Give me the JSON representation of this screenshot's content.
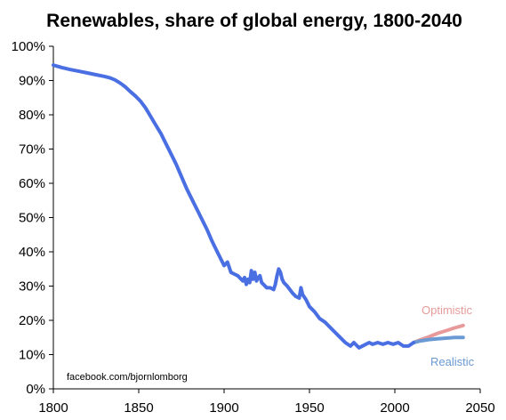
{
  "chart_data": {
    "type": "line",
    "title": "Renewables, share of global energy, 1800-2040",
    "xlabel": "",
    "ylabel": "",
    "xlim": [
      1800,
      2050
    ],
    "ylim": [
      0,
      100
    ],
    "x_ticks": [
      "1800",
      "1850",
      "1900",
      "1950",
      "2000",
      "2050"
    ],
    "y_ticks": [
      "0%",
      "10%",
      "20%",
      "30%",
      "40%",
      "50%",
      "60%",
      "70%",
      "80%",
      "90%",
      "100%"
    ],
    "grid": false,
    "source": "facebook.com/bjornlomborg",
    "colors": {
      "historical": "#4a6fe3",
      "optimistic": "#e89a9a",
      "realistic": "#6a9ad4"
    },
    "series": [
      {
        "name": "",
        "points": [
          [
            1800,
            94.5
          ],
          [
            1805,
            93.8
          ],
          [
            1810,
            93.2
          ],
          [
            1815,
            92.7
          ],
          [
            1820,
            92.2
          ],
          [
            1825,
            91.7
          ],
          [
            1830,
            91.2
          ],
          [
            1833,
            90.8
          ],
          [
            1836,
            90.2
          ],
          [
            1839,
            89.3
          ],
          [
            1842,
            88.2
          ],
          [
            1845,
            86.8
          ],
          [
            1848,
            85.5
          ],
          [
            1851,
            84.0
          ],
          [
            1854,
            82.0
          ],
          [
            1857,
            79.5
          ],
          [
            1860,
            77.0
          ],
          [
            1863,
            74.5
          ],
          [
            1866,
            71.5
          ],
          [
            1869,
            68.5
          ],
          [
            1872,
            65.5
          ],
          [
            1875,
            62.0
          ],
          [
            1878,
            58.5
          ],
          [
            1881,
            55.5
          ],
          [
            1884,
            52.5
          ],
          [
            1887,
            49.5
          ],
          [
            1890,
            46.5
          ],
          [
            1893,
            43.0
          ],
          [
            1896,
            40.0
          ],
          [
            1899,
            37.0
          ],
          [
            1900,
            36.0
          ],
          [
            1902,
            37.0
          ],
          [
            1904,
            34.0
          ],
          [
            1906,
            33.5
          ],
          [
            1908,
            33.0
          ],
          [
            1910,
            32.0
          ],
          [
            1911,
            31.5
          ],
          [
            1912,
            32.5
          ],
          [
            1913,
            30.5
          ],
          [
            1914,
            32.0
          ],
          [
            1915,
            31.0
          ],
          [
            1916,
            34.5
          ],
          [
            1917,
            32.0
          ],
          [
            1918,
            34.0
          ],
          [
            1919,
            31.5
          ],
          [
            1920,
            32.5
          ],
          [
            1921,
            33.0
          ],
          [
            1922,
            31.0
          ],
          [
            1923,
            30.5
          ],
          [
            1925,
            29.5
          ],
          [
            1927,
            29.5
          ],
          [
            1929,
            29.0
          ],
          [
            1930,
            30.5
          ],
          [
            1931,
            33.0
          ],
          [
            1932,
            35.0
          ],
          [
            1933,
            34.0
          ],
          [
            1934,
            32.0
          ],
          [
            1935,
            31.0
          ],
          [
            1937,
            30.0
          ],
          [
            1940,
            28.0
          ],
          [
            1942,
            27.0
          ],
          [
            1944,
            26.5
          ],
          [
            1945,
            29.5
          ],
          [
            1946,
            27.5
          ],
          [
            1948,
            26.0
          ],
          [
            1950,
            24.0
          ],
          [
            1953,
            22.5
          ],
          [
            1956,
            20.5
          ],
          [
            1959,
            19.5
          ],
          [
            1962,
            18.0
          ],
          [
            1965,
            16.5
          ],
          [
            1968,
            15.0
          ],
          [
            1971,
            13.5
          ],
          [
            1974,
            12.5
          ],
          [
            1976,
            13.5
          ],
          [
            1979,
            12.0
          ],
          [
            1981,
            12.5
          ],
          [
            1983,
            13.0
          ],
          [
            1985,
            13.5
          ],
          [
            1987,
            13.0
          ],
          [
            1990,
            13.5
          ],
          [
            1993,
            13.0
          ],
          [
            1996,
            13.5
          ],
          [
            1999,
            13.0
          ],
          [
            2002,
            13.5
          ],
          [
            2005,
            12.5
          ],
          [
            2008,
            12.5
          ],
          [
            2011,
            13.5
          ]
        ]
      },
      {
        "name": "Optimistic",
        "points": [
          [
            2011,
            13.5
          ],
          [
            2015,
            14.3
          ],
          [
            2020,
            15.2
          ],
          [
            2025,
            16.2
          ],
          [
            2030,
            17.0
          ],
          [
            2035,
            17.8
          ],
          [
            2040,
            18.5
          ]
        ]
      },
      {
        "name": "Realistic",
        "points": [
          [
            2011,
            13.5
          ],
          [
            2015,
            14.0
          ],
          [
            2020,
            14.4
          ],
          [
            2025,
            14.6
          ],
          [
            2030,
            14.8
          ],
          [
            2035,
            15.0
          ],
          [
            2040,
            15.0
          ]
        ]
      }
    ]
  }
}
